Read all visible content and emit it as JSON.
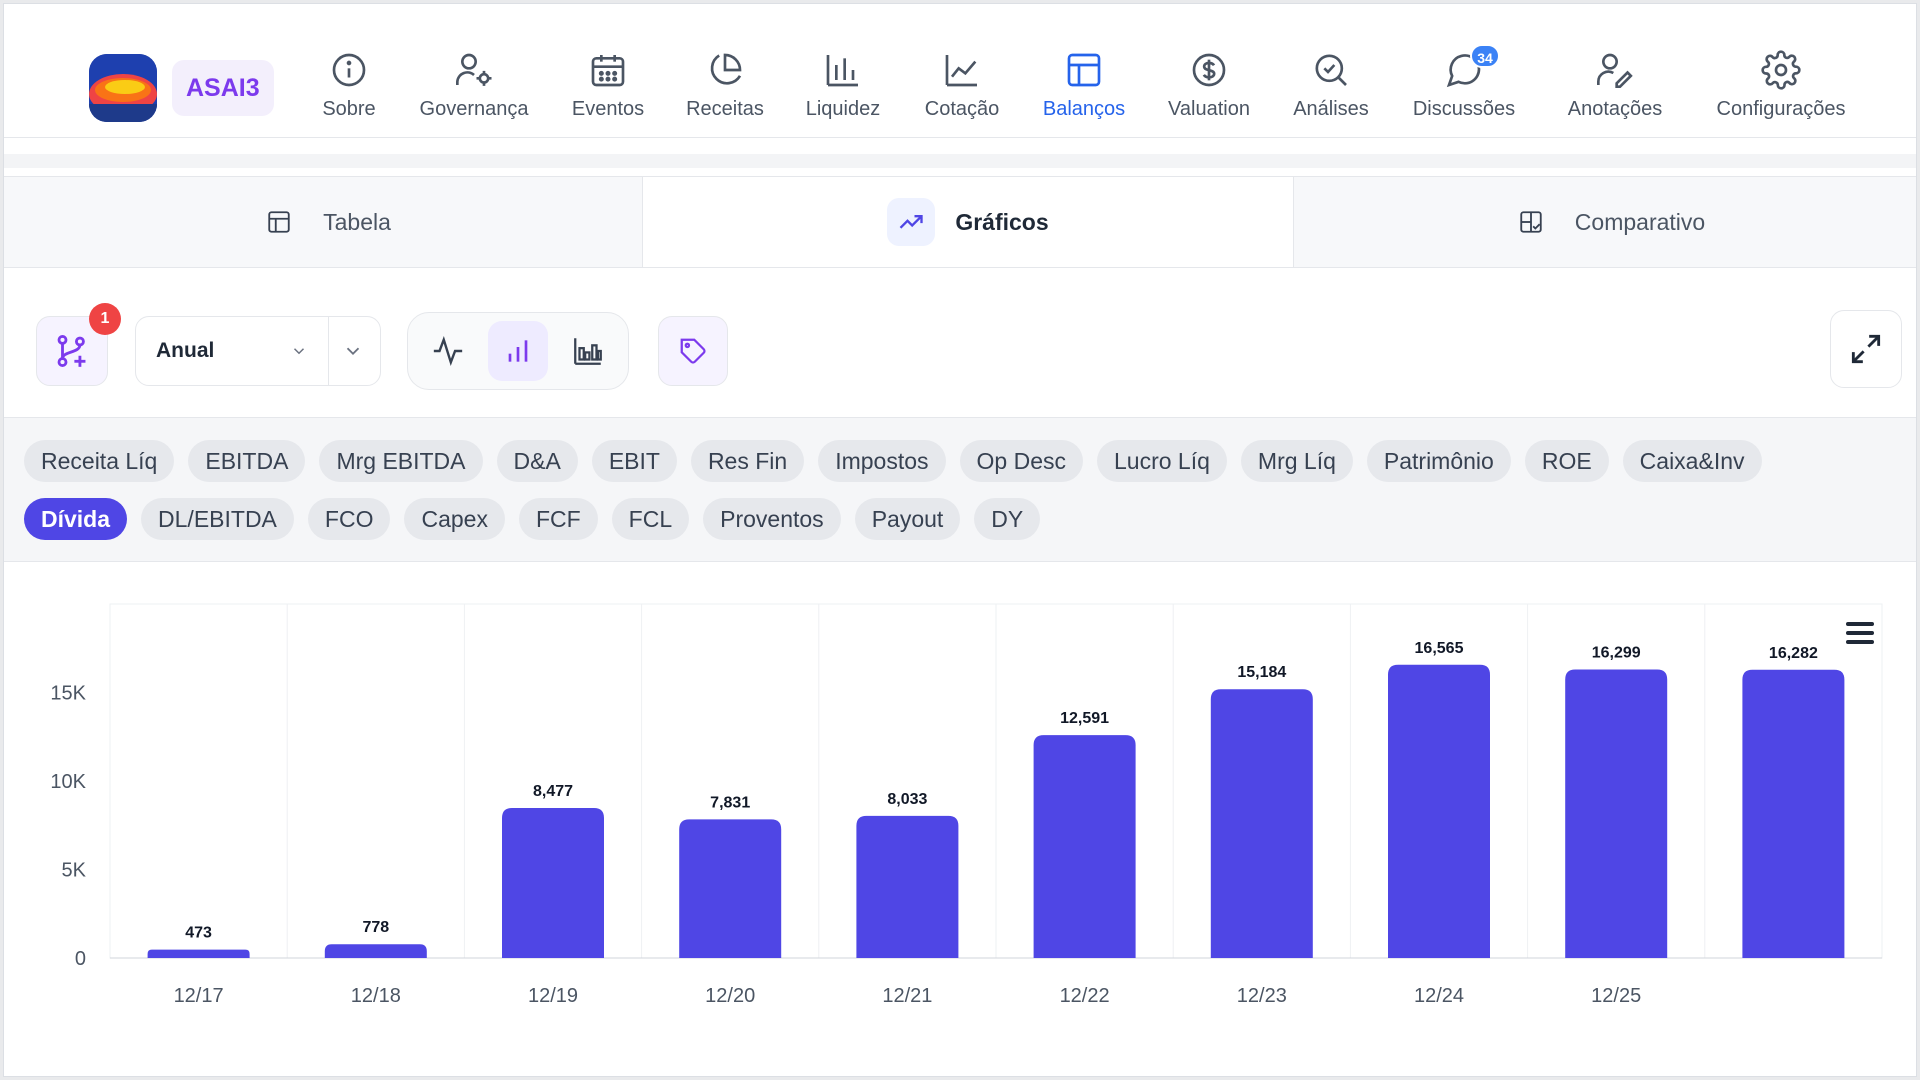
{
  "header": {
    "ticker": "ASAI3",
    "nav": [
      {
        "label": "Sobre",
        "icon": "info-icon",
        "active": false
      },
      {
        "label": "Governança",
        "icon": "user-gear-icon",
        "active": false
      },
      {
        "label": "Eventos",
        "icon": "calendar-icon",
        "active": false
      },
      {
        "label": "Receitas",
        "icon": "pie-chart-icon",
        "active": false
      },
      {
        "label": "Liquidez",
        "icon": "bar-chart-icon",
        "active": false
      },
      {
        "label": "Cotação",
        "icon": "line-chart-icon",
        "active": false
      },
      {
        "label": "Balanços",
        "icon": "layout-icon",
        "active": true
      },
      {
        "label": "Valuation",
        "icon": "dollar-circle-icon",
        "active": false
      },
      {
        "label": "Análises",
        "icon": "search-check-icon",
        "active": false
      },
      {
        "label": "Discussões",
        "icon": "chat-icon",
        "active": false,
        "badge": "34"
      },
      {
        "label": "Anotações",
        "icon": "user-edit-icon",
        "active": false
      },
      {
        "label": "Configurações",
        "icon": "gear-icon",
        "active": false
      }
    ]
  },
  "view_tabs": [
    {
      "label": "Tabela",
      "icon": "table-icon",
      "active": false
    },
    {
      "label": "Gráficos",
      "icon": "trending-up-icon",
      "active": true
    },
    {
      "label": "Comparativo",
      "icon": "compare-icon",
      "active": false
    }
  ],
  "toolbar": {
    "compare_badge": "1",
    "period_value": "Anual"
  },
  "metrics": {
    "row1": [
      "Receita Líq",
      "EBITDA",
      "Mrg EBITDA",
      "D&A",
      "EBIT",
      "Res Fin",
      "Impostos",
      "Op Desc",
      "Lucro Líq",
      "Mrg Líq",
      "Patrimônio",
      "ROE",
      "Caixa&Inv"
    ],
    "row2": [
      "Dívida",
      "DL/EBITDA",
      "FCO",
      "Capex",
      "FCF",
      "FCL",
      "Proventos",
      "Payout",
      "DY"
    ],
    "active": "Dívida"
  },
  "colors": {
    "accent": "#4f46e5",
    "nav_active": "#2563eb",
    "ticker": "#7c3aed",
    "badge_red": "#ef4444"
  },
  "chart_data": {
    "type": "bar",
    "categories": [
      "12/17",
      "12/18",
      "12/19",
      "12/20",
      "12/21",
      "12/22",
      "12/23",
      "12/24",
      "12/25",
      ""
    ],
    "values": [
      473,
      778,
      8477,
      7831,
      8033,
      12591,
      15184,
      16565,
      16299,
      16282
    ],
    "value_labels": [
      "473",
      "778",
      "8,477",
      "7,831",
      "8,033",
      "12,591",
      "15,184",
      "16,565",
      "16,299",
      "16,282"
    ],
    "y_ticks": [
      {
        "value": 0,
        "label": "0"
      },
      {
        "value": 5000,
        "label": "5K"
      },
      {
        "value": 10000,
        "label": "10K"
      },
      {
        "value": 15000,
        "label": "15K"
      }
    ],
    "ylim": [
      0,
      20000
    ],
    "grid": "vertical",
    "color": "#4f46e5"
  }
}
